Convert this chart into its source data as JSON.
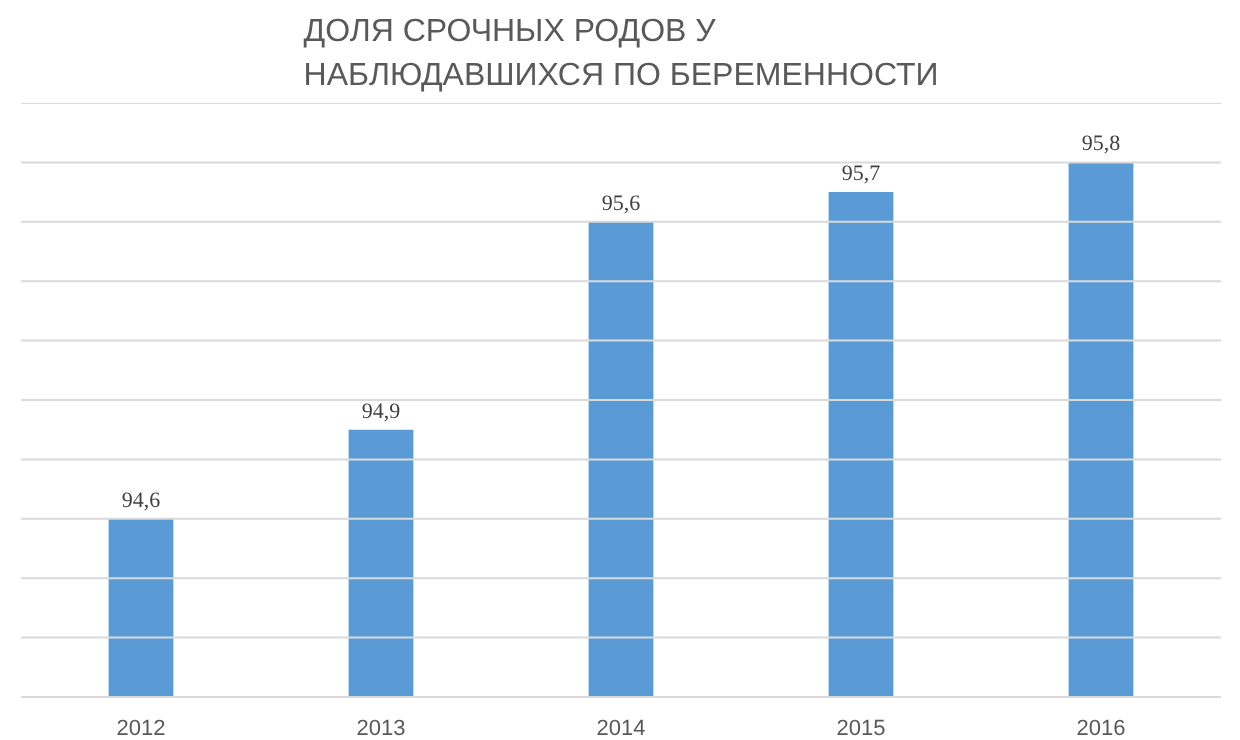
{
  "chart_data": {
    "type": "bar",
    "title": "ДОЛЯ СРОЧНЫХ РОДОВ У\nНАБЛЮДАВШИХСЯ ПО БЕРЕМЕННОСТИ",
    "categories": [
      "2012",
      "2013",
      "2014",
      "2015",
      "2016"
    ],
    "values": [
      94.6,
      94.9,
      95.6,
      95.7,
      95.8
    ],
    "value_labels": [
      "94,6",
      "94,9",
      "95,6",
      "95,7",
      "95,8"
    ],
    "color": "#5b9bd5",
    "ylim": [
      94,
      96
    ],
    "yticks": [
      {
        "value": 94,
        "label": null
      },
      {
        "value": 94.2,
        "label": null
      },
      {
        "value": 94.4,
        "label": null
      },
      {
        "value": 94.6,
        "label": null
      },
      {
        "value": 94.8,
        "label": null
      },
      {
        "value": 95,
        "label": null
      },
      {
        "value": 95.2,
        "label": null
      },
      {
        "value": 95.4,
        "label": null
      },
      {
        "value": 95.6,
        "label": null
      },
      {
        "value": 95.8,
        "label": null
      },
      {
        "value": 96,
        "label": null
      }
    ],
    "grid": "y",
    "tick_labels": "x"
  }
}
